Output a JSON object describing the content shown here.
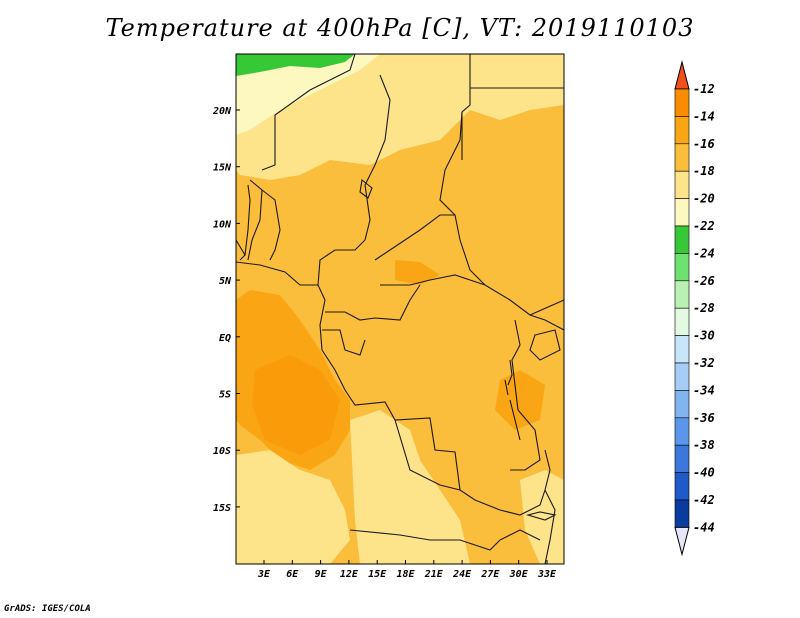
{
  "title": "Temperature at 400hPa [C], VT: 2019110103",
  "credit": "GrADS: IGES/COLA",
  "map": {
    "lat_labels": [
      "20N",
      "15N",
      "10N",
      "5N",
      "EQ",
      "5S",
      "10S",
      "15S"
    ],
    "lon_labels": [
      "3E",
      "6E",
      "9E",
      "12E",
      "15E",
      "18E",
      "21E",
      "24E",
      "27E",
      "30E",
      "33E"
    ]
  },
  "colorbar": {
    "labels": [
      "-12",
      "-14",
      "-16",
      "-18",
      "-20",
      "-22",
      "-24",
      "-26",
      "-28",
      "-30",
      "-32",
      "-34",
      "-36",
      "-38",
      "-40",
      "-42",
      "-44"
    ],
    "colors": [
      "#f0501e",
      "#fa8c00",
      "#faa514",
      "#fbbe3c",
      "#fde38a",
      "#fdf7c0",
      "#37c837",
      "#6ee16e",
      "#b9f0b4",
      "#e1fae1",
      "#c8e6fa",
      "#a5cdf5",
      "#82b4f0",
      "#5a96eb",
      "#3c78dc",
      "#1e5ac8",
      "#0a3ca0",
      "#0a1464"
    ],
    "top_color": "#f0501e",
    "bottom_color": "#e6e6fa"
  },
  "fields": {
    "nw_green": "#37c837",
    "c20_22": "#fdf7c0",
    "c18_20": "#fde38a",
    "c16_18": "#fbbe3c",
    "c14_16": "#faa514",
    "c12_14": "#fa9b0a",
    "boundary": "#1a1a1a"
  }
}
